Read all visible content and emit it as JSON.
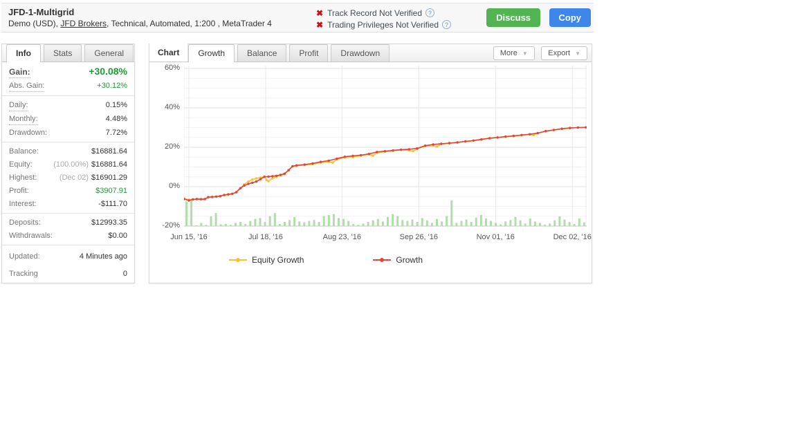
{
  "header": {
    "title": "JFD-1-Multigrid",
    "subtitle_pre": "Demo (USD), ",
    "subtitle_link": "JFD Brokers",
    "subtitle_post": ", Technical, Automated, 1:200 , MetaTrader 4",
    "verifications": [
      {
        "text": "Track Record Not Verified"
      },
      {
        "text": "Trading Privileges Not Verified"
      }
    ],
    "cross_glyph": "✖",
    "question_glyph": "?",
    "discuss_label": "Discuss",
    "copy_label": "Copy",
    "colors": {
      "discuss": "#53b453",
      "copy": "#3e86ea",
      "cross": "#cc1111"
    }
  },
  "info_panel": {
    "tabs": [
      {
        "label": "Info",
        "active": true
      },
      {
        "label": "Stats",
        "active": false
      },
      {
        "label": "General",
        "active": false
      }
    ],
    "groups": [
      {
        "rows": [
          {
            "label": "Gain:",
            "value": "+30.08%",
            "big": true,
            "green": true,
            "dotted": true
          },
          {
            "label": "Abs. Gain:",
            "value": "+30.12%",
            "green": true,
            "dotted": true
          }
        ]
      },
      {
        "rows": [
          {
            "label": "Daily:",
            "value": "0.15%",
            "dotted": true
          },
          {
            "label": "Monthly:",
            "value": "4.48%",
            "dotted": true
          },
          {
            "label": "Drawdown:",
            "value": "7.72%"
          }
        ]
      },
      {
        "rows": [
          {
            "label": "Balance:",
            "value": "$16881.64"
          },
          {
            "label": "Equity:",
            "pre": "(100.00%)",
            "value": "$16881.64"
          },
          {
            "label": "Highest:",
            "pre": "(Dec 02)",
            "value": "$16901.29"
          },
          {
            "label": "Profit:",
            "value": "$3907.91",
            "green": true
          },
          {
            "label": "Interest:",
            "value": "-$111.70"
          }
        ]
      },
      {
        "rows": [
          {
            "label": "Deposits:",
            "value": "$12993.35"
          },
          {
            "label": "Withdrawals:",
            "value": "$0.00"
          }
        ]
      },
      {
        "rows": [
          {
            "label": "Updated:",
            "value": "4 Minutes ago"
          },
          {
            "label": "Tracking",
            "value": "0"
          }
        ],
        "last": true
      }
    ]
  },
  "chart_panel": {
    "title": "Chart",
    "tabs": [
      {
        "label": "Growth",
        "active": true
      },
      {
        "label": "Balance",
        "active": false
      },
      {
        "label": "Profit",
        "active": false
      },
      {
        "label": "Drawdown",
        "active": false
      }
    ],
    "more_label": "More",
    "export_label": "Export",
    "caret_glyph": "▼"
  },
  "chart_data": {
    "type": "line",
    "title": "Growth chart",
    "xlabel": "",
    "ylabel": "",
    "ylim": [
      -20,
      60
    ],
    "grid": true,
    "legend_position": "bottom",
    "yticks": [
      {
        "v": 60,
        "label": "60%"
      },
      {
        "v": 40,
        "label": "40%"
      },
      {
        "v": 20,
        "label": "20%"
      },
      {
        "v": 0,
        "label": "0%"
      },
      {
        "v": -20,
        "label": "-20%"
      }
    ],
    "xticks": [
      {
        "f": 0.012,
        "label": "Jun 15, '16"
      },
      {
        "f": 0.203,
        "label": "Jul 18, '16"
      },
      {
        "f": 0.393,
        "label": "Aug 23, '16"
      },
      {
        "f": 0.584,
        "label": "Sep 26, '16"
      },
      {
        "f": 0.775,
        "label": "Nov 01, '16"
      },
      {
        "f": 0.966,
        "label": "Dec 02, '16"
      }
    ],
    "series": [
      {
        "name": "Equity Growth",
        "color": "#f7c12f",
        "points": [
          [
            0,
            -6.0
          ],
          [
            0.012,
            -6.6
          ],
          [
            0.022,
            -6.4
          ],
          [
            0.032,
            -6.2
          ],
          [
            0.042,
            -6.3
          ],
          [
            0.052,
            -6.2
          ],
          [
            0.06,
            -5.4
          ],
          [
            0.07,
            -5.3
          ],
          [
            0.08,
            -5.1
          ],
          [
            0.09,
            -4.9
          ],
          [
            0.1,
            -4.3
          ],
          [
            0.11,
            -4.0
          ],
          [
            0.12,
            -3.7
          ],
          [
            0.13,
            -2.9
          ],
          [
            0.14,
            -0.9
          ],
          [
            0.15,
            1.2
          ],
          [
            0.16,
            2.6
          ],
          [
            0.17,
            3.6
          ],
          [
            0.18,
            4.2
          ],
          [
            0.19,
            4.6
          ],
          [
            0.2,
            5.2
          ],
          [
            0.205,
            3.4
          ],
          [
            0.21,
            2.8
          ],
          [
            0.22,
            4.2
          ],
          [
            0.23,
            5.0
          ],
          [
            0.24,
            5.8
          ],
          [
            0.25,
            6.4
          ],
          [
            0.26,
            8.2
          ],
          [
            0.27,
            10.2
          ],
          [
            0.28,
            10.6
          ],
          [
            0.3,
            11.0
          ],
          [
            0.32,
            11.4
          ],
          [
            0.34,
            12.2
          ],
          [
            0.36,
            12.6
          ],
          [
            0.37,
            12.2
          ],
          [
            0.38,
            13.8
          ],
          [
            0.4,
            14.8
          ],
          [
            0.42,
            15.0
          ],
          [
            0.44,
            15.8
          ],
          [
            0.46,
            16.4
          ],
          [
            0.47,
            15.8
          ],
          [
            0.48,
            17.2
          ],
          [
            0.5,
            17.8
          ],
          [
            0.52,
            18.2
          ],
          [
            0.54,
            18.6
          ],
          [
            0.56,
            18.4
          ],
          [
            0.57,
            18.0
          ],
          [
            0.58,
            19.2
          ],
          [
            0.6,
            20.6
          ],
          [
            0.62,
            20.8
          ],
          [
            0.63,
            20.4
          ],
          [
            0.64,
            21.6
          ],
          [
            0.66,
            22.0
          ],
          [
            0.68,
            22.4
          ],
          [
            0.7,
            22.9
          ],
          [
            0.72,
            23.3
          ],
          [
            0.74,
            23.9
          ],
          [
            0.76,
            24.5
          ],
          [
            0.78,
            24.9
          ],
          [
            0.8,
            25.3
          ],
          [
            0.82,
            25.6
          ],
          [
            0.84,
            26.1
          ],
          [
            0.86,
            26.5
          ],
          [
            0.87,
            26.2
          ],
          [
            0.88,
            27.1
          ],
          [
            0.9,
            28.1
          ],
          [
            0.92,
            28.7
          ],
          [
            0.94,
            29.3
          ],
          [
            0.96,
            29.7
          ],
          [
            0.98,
            30.0
          ],
          [
            1,
            30.1
          ]
        ]
      },
      {
        "name": "Growth",
        "color": "#e2443b",
        "points": [
          [
            0,
            -6.2
          ],
          [
            0.012,
            -7.0
          ],
          [
            0.022,
            -6.5
          ],
          [
            0.032,
            -6.3
          ],
          [
            0.042,
            -6.4
          ],
          [
            0.052,
            -6.3
          ],
          [
            0.06,
            -5.3
          ],
          [
            0.07,
            -5.2
          ],
          [
            0.08,
            -5.0
          ],
          [
            0.09,
            -4.8
          ],
          [
            0.1,
            -4.2
          ],
          [
            0.11,
            -3.9
          ],
          [
            0.12,
            -3.6
          ],
          [
            0.13,
            -2.8
          ],
          [
            0.14,
            -0.8
          ],
          [
            0.15,
            0.6
          ],
          [
            0.16,
            1.4
          ],
          [
            0.17,
            2.0
          ],
          [
            0.18,
            2.6
          ],
          [
            0.19,
            3.8
          ],
          [
            0.2,
            5.0
          ],
          [
            0.21,
            5.1
          ],
          [
            0.22,
            5.3
          ],
          [
            0.23,
            5.5
          ],
          [
            0.24,
            6.0
          ],
          [
            0.25,
            6.6
          ],
          [
            0.26,
            8.4
          ],
          [
            0.27,
            10.4
          ],
          [
            0.28,
            10.8
          ],
          [
            0.3,
            11.2
          ],
          [
            0.32,
            11.8
          ],
          [
            0.34,
            12.6
          ],
          [
            0.36,
            13.2
          ],
          [
            0.38,
            14.2
          ],
          [
            0.4,
            15.2
          ],
          [
            0.42,
            15.6
          ],
          [
            0.44,
            16.0
          ],
          [
            0.46,
            16.6
          ],
          [
            0.48,
            17.6
          ],
          [
            0.5,
            18.0
          ],
          [
            0.52,
            18.4
          ],
          [
            0.54,
            18.8
          ],
          [
            0.56,
            19.0
          ],
          [
            0.58,
            19.4
          ],
          [
            0.6,
            20.8
          ],
          [
            0.62,
            21.4
          ],
          [
            0.64,
            21.8
          ],
          [
            0.66,
            22.1
          ],
          [
            0.68,
            22.5
          ],
          [
            0.7,
            23.0
          ],
          [
            0.72,
            23.4
          ],
          [
            0.74,
            24.0
          ],
          [
            0.76,
            24.6
          ],
          [
            0.78,
            25.0
          ],
          [
            0.8,
            25.4
          ],
          [
            0.82,
            25.8
          ],
          [
            0.84,
            26.2
          ],
          [
            0.86,
            26.6
          ],
          [
            0.88,
            27.2
          ],
          [
            0.9,
            28.2
          ],
          [
            0.92,
            28.8
          ],
          [
            0.94,
            29.4
          ],
          [
            0.96,
            29.8
          ],
          [
            0.98,
            30.0
          ],
          [
            1,
            30.1
          ]
        ]
      }
    ],
    "bars": {
      "name": "activity",
      "color": "#b2dcab",
      "baseline": -20,
      "heights": [
        12.5,
        13,
        0.4,
        1.6,
        0.6,
        5,
        6.6,
        0.9,
        1.1,
        0.6,
        1.6,
        2.1,
        1.1,
        2.6,
        3.6,
        4.1,
        2.1,
        5.1,
        6.6,
        1.1,
        2.1,
        3.1,
        4.6,
        2.3,
        1.9,
        2.6,
        3.1,
        2.1,
        5.1,
        5.6,
        6.1,
        4.1,
        3.6,
        2.6,
        1.1,
        0.6,
        1.3,
        2.1,
        2.9,
        3.6,
        2.3,
        4.6,
        6.1,
        5.1,
        3.1,
        2.6,
        3.3,
        2.1,
        4.1,
        2.9,
        1.6,
        3.6,
        2.3,
        5.1,
        13,
        1.6,
        2.6,
        3.3,
        2.1,
        4.3,
        5.6,
        3.9,
        2.6,
        1.6,
        0.9,
        2.3,
        3.1,
        4.6,
        2.9,
        1.3,
        3.9,
        2.3,
        1.6,
        0.7,
        1.3,
        2.9,
        4.9,
        3.3,
        2.1,
        1.1,
        3.9,
        1.9
      ]
    },
    "legend": [
      "Equity Growth",
      "Growth"
    ]
  }
}
